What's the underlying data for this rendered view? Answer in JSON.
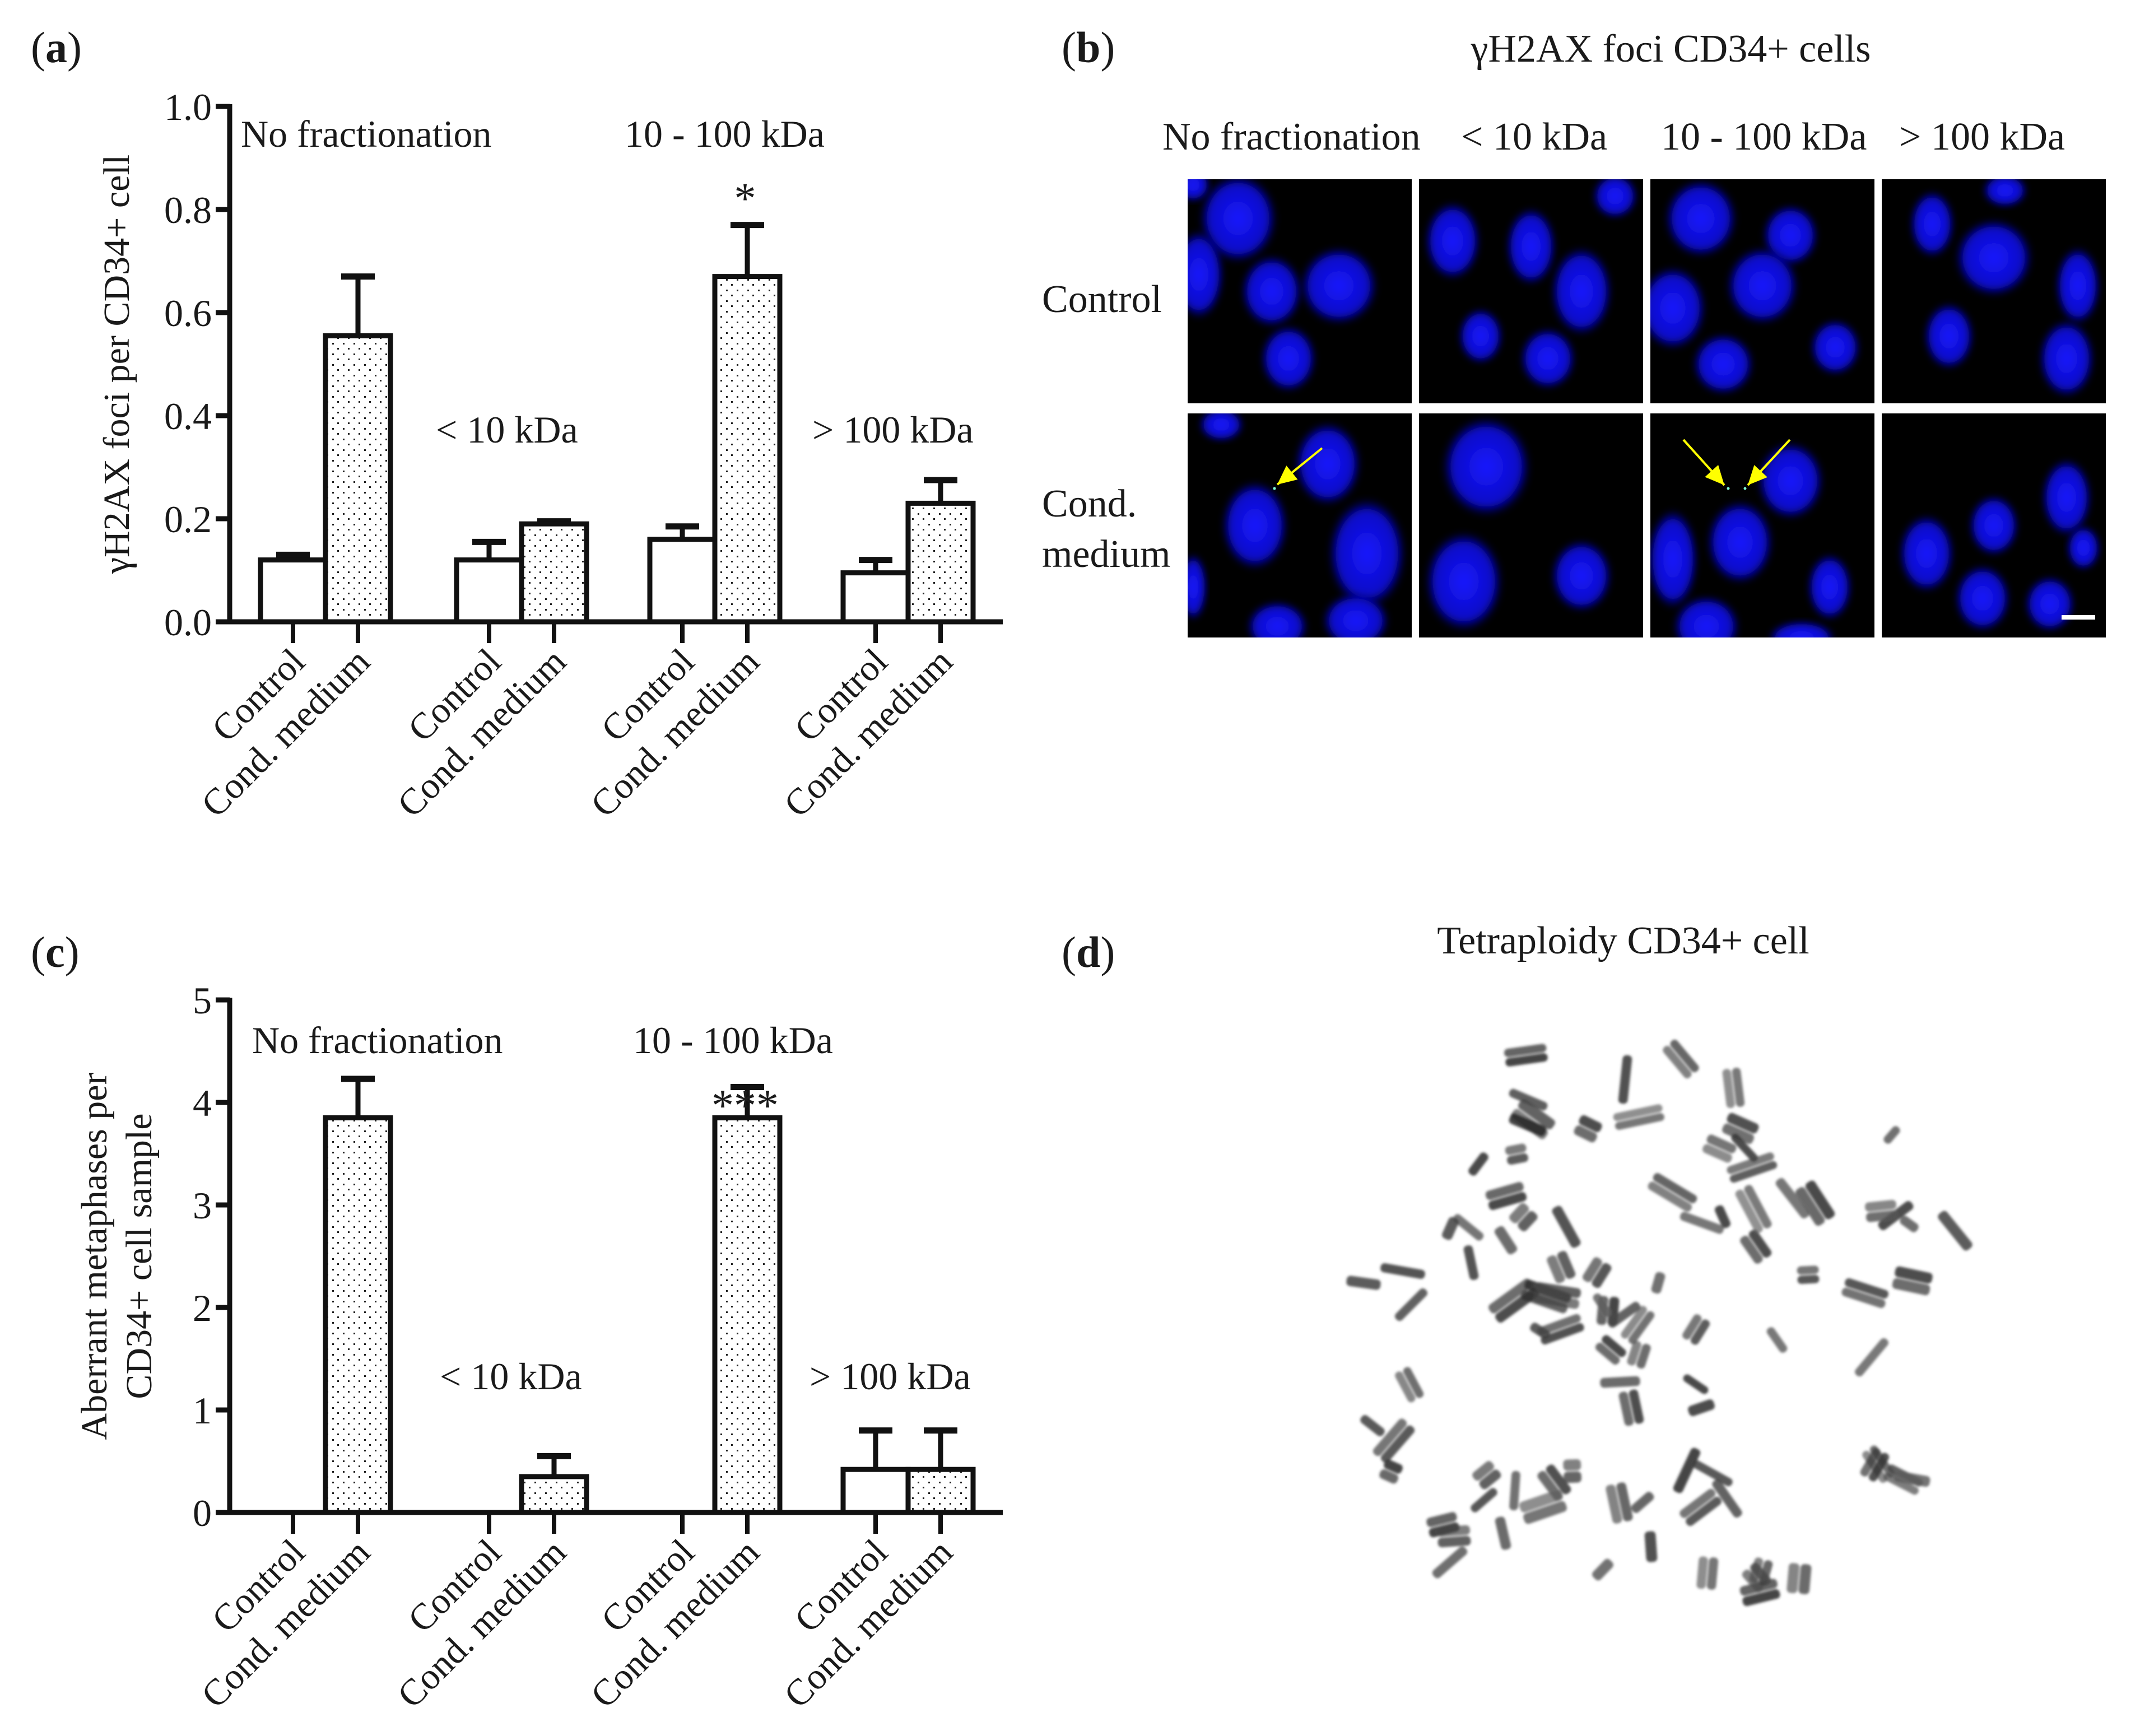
{
  "panels": {
    "a": {
      "label_open": "(",
      "letter": "a",
      "label_close": ")"
    },
    "b": {
      "label_open": "(",
      "letter": "b",
      "label_close": ")",
      "title": "γH2AX foci CD34+ cells",
      "columns": [
        "No fractionation",
        "< 10 kDa",
        "10 - 100 kDa",
        "> 100 kDa"
      ],
      "rows": [
        "Control",
        "Cond.",
        "medium"
      ],
      "image_bg": "#000000",
      "nucleus_color": "#1a1aff",
      "arrow_color": "#ffff00",
      "scale_bar_color": "#ffffff"
    },
    "c": {
      "label_open": "(",
      "letter": "c",
      "label_close": ")"
    },
    "d": {
      "label_open": "(",
      "letter": "d",
      "label_close": ")",
      "title": "Tetraploidy CD34+ cell",
      "scale_bar_color": "#111111"
    }
  },
  "chart_data": [
    {
      "type": "bar",
      "panel": "a",
      "ylabel": "γH2AX foci per CD34+ cell",
      "xlabel": "",
      "ylim": [
        0,
        1.0
      ],
      "yticks": [
        "0.0",
        "0.2",
        "0.4",
        "0.6",
        "0.8",
        "1.0"
      ],
      "groups": [
        "No fractionation",
        "< 10 kDa",
        "10 - 100 kDa",
        "> 100 kDa"
      ],
      "categories": [
        "Control",
        "Cond. medium",
        "Control",
        "Cond. medium",
        "Control",
        "Cond. medium",
        "Control",
        "Cond. medium"
      ],
      "series": [
        {
          "name": "Control",
          "fill": "plain",
          "values": [
            0.12,
            0.12,
            0.16,
            0.095
          ],
          "error_upper": [
            0.13,
            0.155,
            0.185,
            0.12
          ]
        },
        {
          "name": "Cond. medium",
          "fill": "dotted",
          "values": [
            0.555,
            0.19,
            0.67,
            0.23
          ],
          "error_upper": [
            0.67,
            0.195,
            0.77,
            0.275
          ]
        }
      ],
      "annotations": [
        {
          "text": "No fractionation"
        },
        {
          "text": "10 - 100 kDa"
        },
        {
          "text": "< 10 kDa"
        },
        {
          "text": "> 100 kDa"
        },
        {
          "text": "*",
          "group": "10 - 100 kDa",
          "series": "Cond. medium"
        }
      ],
      "grid": false,
      "legend": "none"
    },
    {
      "type": "bar",
      "panel": "c",
      "ylabel_line1": "Aberrant metaphases per",
      "ylabel_line2": "CD34+ cell sample",
      "xlabel": "",
      "ylim": [
        0,
        5
      ],
      "yticks": [
        "0",
        "1",
        "2",
        "3",
        "4",
        "5"
      ],
      "groups": [
        "No fractionation",
        "< 10 kDa",
        "10 - 100 kDa",
        "> 100 kDa"
      ],
      "categories": [
        "Control",
        "Cond. medium",
        "Control",
        "Cond. medium",
        "Control",
        "Cond. medium",
        "Control",
        "Cond. medium"
      ],
      "series": [
        {
          "name": "Control",
          "fill": "plain",
          "values": [
            0,
            0,
            0,
            0.42
          ],
          "error_upper": [
            0,
            0,
            0,
            0.8
          ]
        },
        {
          "name": "Cond. medium",
          "fill": "dotted",
          "values": [
            3.85,
            0.35,
            3.85,
            0.42
          ],
          "error_upper": [
            4.23,
            0.55,
            4.15,
            0.8
          ]
        }
      ],
      "annotations": [
        {
          "text": "No fractionation"
        },
        {
          "text": "10 - 100 kDa"
        },
        {
          "text": "< 10 kDa"
        },
        {
          "text": "> 100 kDa"
        },
        {
          "text": "***",
          "group": "10 - 100 kDa",
          "series": "Cond. medium"
        }
      ],
      "grid": false,
      "legend": "none"
    }
  ]
}
